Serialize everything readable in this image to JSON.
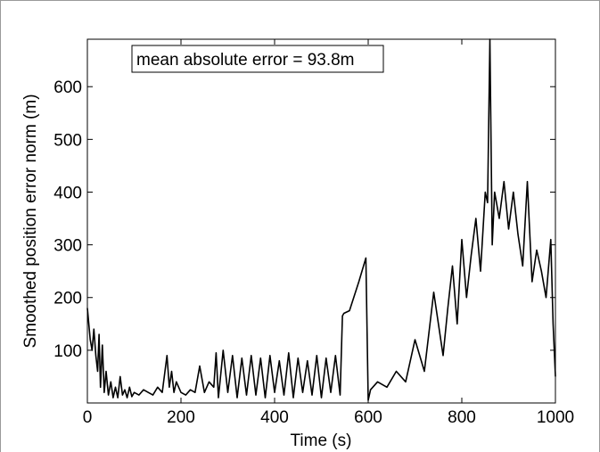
{
  "chart_data": {
    "type": "line",
    "xlabel": "Time (s)",
    "ylabel": "Smoothed position error norm (m)",
    "xlim": [
      0,
      1000
    ],
    "ylim": [
      0,
      690
    ],
    "x_ticks": [
      "0",
      "200",
      "400",
      "600",
      "800",
      "1000"
    ],
    "y_ticks": [
      "100",
      "200",
      "300",
      "400",
      "500",
      "600"
    ],
    "annotation": "mean absolute error = 93.8m",
    "grid": false,
    "line_color": "#000000",
    "series": [
      {
        "x": [
          0,
          3,
          6,
          10,
          14,
          18,
          22,
          25,
          28,
          32,
          36,
          40,
          45,
          50,
          55,
          60,
          65,
          70,
          75,
          80,
          85,
          90,
          95,
          100,
          110,
          120,
          130,
          140,
          150,
          160,
          170,
          175,
          180,
          185,
          190,
          200,
          210,
          220,
          230,
          240,
          250,
          260,
          270,
          275,
          280,
          290,
          300,
          310,
          320,
          330,
          340,
          350,
          360,
          370,
          380,
          390,
          400,
          410,
          420,
          430,
          440,
          450,
          460,
          470,
          480,
          490,
          500,
          510,
          520,
          530,
          540,
          545,
          548,
          560,
          580,
          595,
          600,
          605,
          620,
          640,
          660,
          680,
          700,
          720,
          740,
          760,
          770,
          780,
          790,
          800,
          810,
          820,
          830,
          840,
          850,
          855,
          860,
          865,
          870,
          880,
          890,
          900,
          910,
          920,
          930,
          940,
          950,
          960,
          970,
          980,
          990,
          995,
          1000
        ],
        "y": [
          180,
          150,
          120,
          100,
          140,
          90,
          60,
          130,
          30,
          110,
          20,
          60,
          15,
          40,
          10,
          30,
          10,
          50,
          15,
          25,
          10,
          30,
          12,
          20,
          15,
          25,
          20,
          15,
          30,
          20,
          90,
          30,
          60,
          20,
          40,
          20,
          15,
          25,
          20,
          70,
          20,
          40,
          30,
          95,
          10,
          100,
          20,
          90,
          10,
          85,
          15,
          90,
          15,
          85,
          10,
          90,
          20,
          80,
          15,
          95,
          10,
          85,
          20,
          80,
          15,
          90,
          10,
          85,
          20,
          90,
          15,
          165,
          170,
          175,
          230,
          275,
          5,
          25,
          40,
          30,
          60,
          40,
          120,
          60,
          210,
          90,
          180,
          260,
          150,
          310,
          200,
          280,
          350,
          250,
          400,
          380,
          690,
          300,
          400,
          350,
          420,
          330,
          400,
          320,
          260,
          420,
          230,
          290,
          250,
          200,
          310,
          150,
          50
        ]
      }
    ]
  }
}
